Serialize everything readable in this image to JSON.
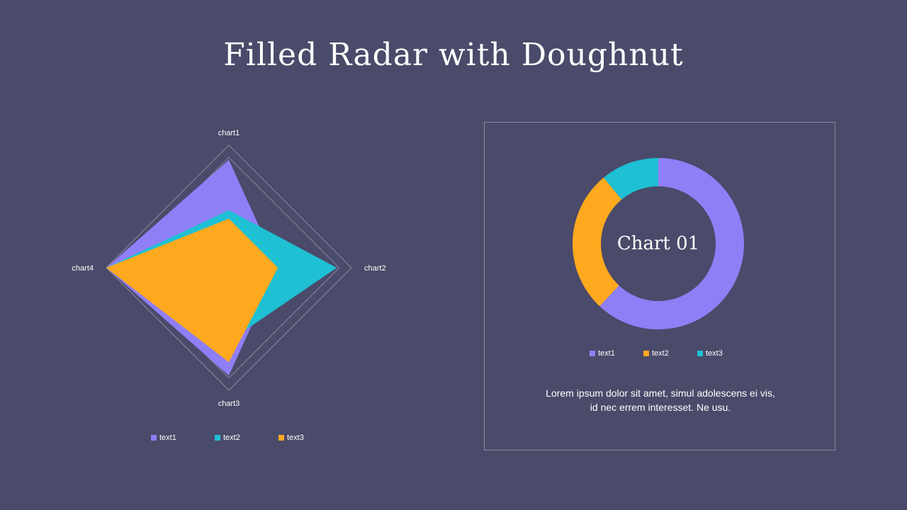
{
  "title": "Filled Radar with Doughnut",
  "chart_data": [
    {
      "type": "radar",
      "axes": [
        "chart1",
        "chart2",
        "chart3",
        "chart4"
      ],
      "series": [
        {
          "name": "text1",
          "color": "#8f7ff7",
          "values": [
            0.88,
            0.4,
            0.88,
            1.0
          ]
        },
        {
          "name": "text2",
          "color": "#1fc0d4",
          "values": [
            0.47,
            0.88,
            0.6,
            1.0
          ]
        },
        {
          "name": "text3",
          "color": "#ffa91e",
          "values": [
            0.4,
            0.4,
            0.77,
            1.0
          ]
        }
      ],
      "grid": true,
      "legend": "bottom"
    },
    {
      "type": "pie",
      "variant": "doughnut",
      "center_text": "Chart 01",
      "slices": [
        {
          "name": "text1",
          "color": "#8f7ff7",
          "value": 62
        },
        {
          "name": "text2",
          "color": "#ffa91e",
          "value": 27
        },
        {
          "name": "text3",
          "color": "#1fc0d4",
          "value": 11
        }
      ],
      "legend": "bottom"
    }
  ],
  "description": {
    "line1": "Lorem ipsum dolor sit amet, simul adolescens ei vis,",
    "line2": "id nec errem  interesset. Ne usu."
  }
}
